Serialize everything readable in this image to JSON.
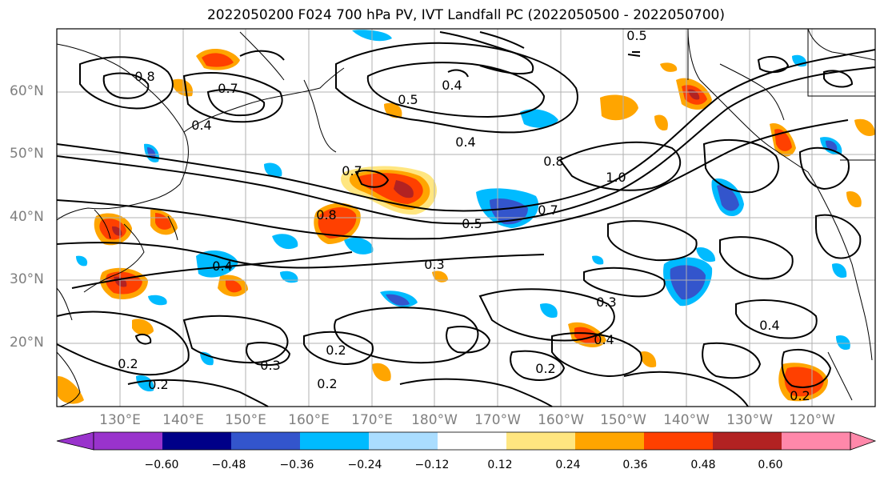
{
  "title": "2022050200 F024 700 hPa PV, IVT Landfall PC (2022050500 - 2022050700)",
  "lat_labels": [
    "60°N",
    "50°N",
    "40°N",
    "30°N",
    "20°N"
  ],
  "lon_labels": [
    "130°E",
    "140°E",
    "150°E",
    "160°E",
    "170°E",
    "180°W",
    "170°W",
    "160°W",
    "150°W",
    "140°W",
    "130°W",
    "120°W"
  ],
  "contour_labels": [
    "0.5",
    "0.4",
    "0.7",
    "0.8",
    "0.4",
    "0.5",
    "0.7",
    "1.0",
    "0.8",
    "0.7",
    "0.8",
    "0.5",
    "0.4",
    "0.2",
    "0.2",
    "0.3",
    "0.2",
    "0.2",
    "0.3",
    "0.4",
    "0.4",
    "0.2",
    "0.2",
    "0.4",
    "0.3"
  ],
  "colorbar": {
    "labels": [
      "−0.60",
      "−0.48",
      "−0.36",
      "−0.24",
      "−0.12",
      "0.12",
      "0.24",
      "0.36",
      "0.48",
      "0.60"
    ],
    "colors": [
      "#9933cc",
      "#000088",
      "#3355cc",
      "#00bbff",
      "#aaddff",
      "#ffffff",
      "#ffe680",
      "#ffa500",
      "#ff4000",
      "#b22222",
      "#ff88aa"
    ]
  }
}
